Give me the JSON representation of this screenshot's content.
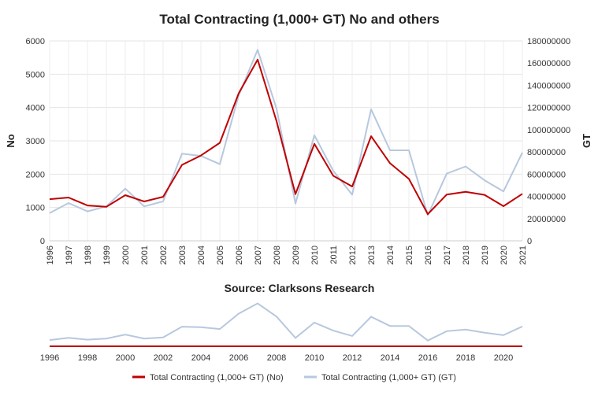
{
  "chart_data": {
    "type": "line",
    "title": "Total Contracting (1,000+ GT) No and others",
    "subtitle": "Source: Clarksons Research",
    "y_left_label": "No",
    "y_right_label": "GT",
    "x": [
      1996,
      1997,
      1998,
      1999,
      2000,
      2001,
      2002,
      2003,
      2004,
      2005,
      2006,
      2007,
      2008,
      2009,
      2010,
      2011,
      2012,
      2013,
      2014,
      2015,
      2016,
      2017,
      2018,
      2019,
      2020,
      2021
    ],
    "y_left_ticks": [
      "0",
      "1000",
      "2000",
      "3000",
      "4000",
      "5000",
      "6000"
    ],
    "y_left_lim": [
      0,
      6000
    ],
    "y_right_ticks": [
      "0",
      "20000000",
      "40000000",
      "60000000",
      "80000000",
      "100000000",
      "120000000",
      "140000000",
      "160000000",
      "180000000"
    ],
    "y_right_lim": [
      0,
      180000000
    ],
    "navigator_ticks": [
      "1996",
      "1998",
      "2000",
      "2002",
      "2004",
      "2006",
      "2008",
      "2010",
      "2012",
      "2014",
      "2016",
      "2018",
      "2020"
    ],
    "grid": true,
    "legend_position": "bottom",
    "series": [
      {
        "name": "Total Contracting (1,000+ GT) (No)",
        "axis": "left",
        "color": "#c00000",
        "values": [
          1250,
          1300,
          1060,
          1020,
          1370,
          1180,
          1320,
          2280,
          2560,
          2940,
          4430,
          5440,
          3590,
          1400,
          2910,
          1950,
          1630,
          3140,
          2330,
          1860,
          800,
          1390,
          1470,
          1380,
          1040,
          1410
        ]
      },
      {
        "name": "Total Contracting (1,000+ GT) (GT)",
        "axis": "right",
        "color": "#b7c8de",
        "values": [
          25000000,
          34000000,
          26500000,
          31000000,
          47000000,
          31000000,
          35500000,
          78500000,
          76500000,
          69000000,
          131000000,
          172000000,
          119000000,
          33500000,
          95000000,
          63000000,
          41500000,
          118500000,
          81500000,
          81500000,
          23000000,
          60500000,
          67000000,
          54500000,
          44500000,
          79500000
        ]
      }
    ]
  }
}
